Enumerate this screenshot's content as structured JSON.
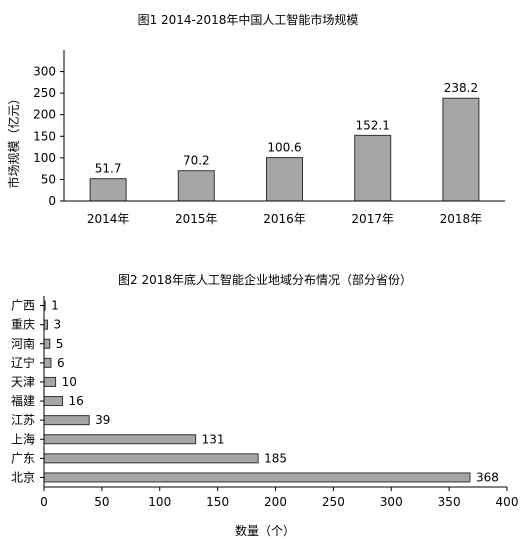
{
  "chart_data": [
    {
      "type": "bar",
      "title": "图1  2014-2018年中国人工智能市场规模",
      "xlabel": "",
      "ylabel": "市场规模（亿元）",
      "categories": [
        "2014年",
        "2015年",
        "2016年",
        "2017年",
        "2018年"
      ],
      "values": [
        51.7,
        70.2,
        100.6,
        152.1,
        238.2
      ],
      "value_labels": [
        "51.7",
        "70.2",
        "100.6",
        "152.1",
        "238.2"
      ],
      "ylim": [
        0,
        350
      ],
      "yticks": [
        "0",
        "50",
        "100",
        "150",
        "200",
        "250",
        "300"
      ],
      "bar_color": "#a6a6a6",
      "grid": false
    },
    {
      "type": "bar",
      "orientation": "horizontal",
      "title": "图2  2018年底人工智能企业地域分布情况（部分省份）",
      "xlabel": "数量（个）",
      "ylabel": "",
      "categories": [
        "广西",
        "重庆",
        "河南",
        "辽宁",
        "天津",
        "福建",
        "江苏",
        "上海",
        "广东",
        "北京"
      ],
      "values": [
        1,
        3,
        5,
        6,
        10,
        16,
        39,
        131,
        185,
        368
      ],
      "value_labels": [
        "1",
        "3",
        "5",
        "6",
        "10",
        "16",
        "39",
        "131",
        "185",
        "368"
      ],
      "xlim": [
        0,
        400
      ],
      "xticks": [
        "0",
        "50",
        "100",
        "150",
        "200",
        "250",
        "300",
        "350",
        "400"
      ],
      "bar_color": "#a6a6a6",
      "grid": false
    }
  ]
}
